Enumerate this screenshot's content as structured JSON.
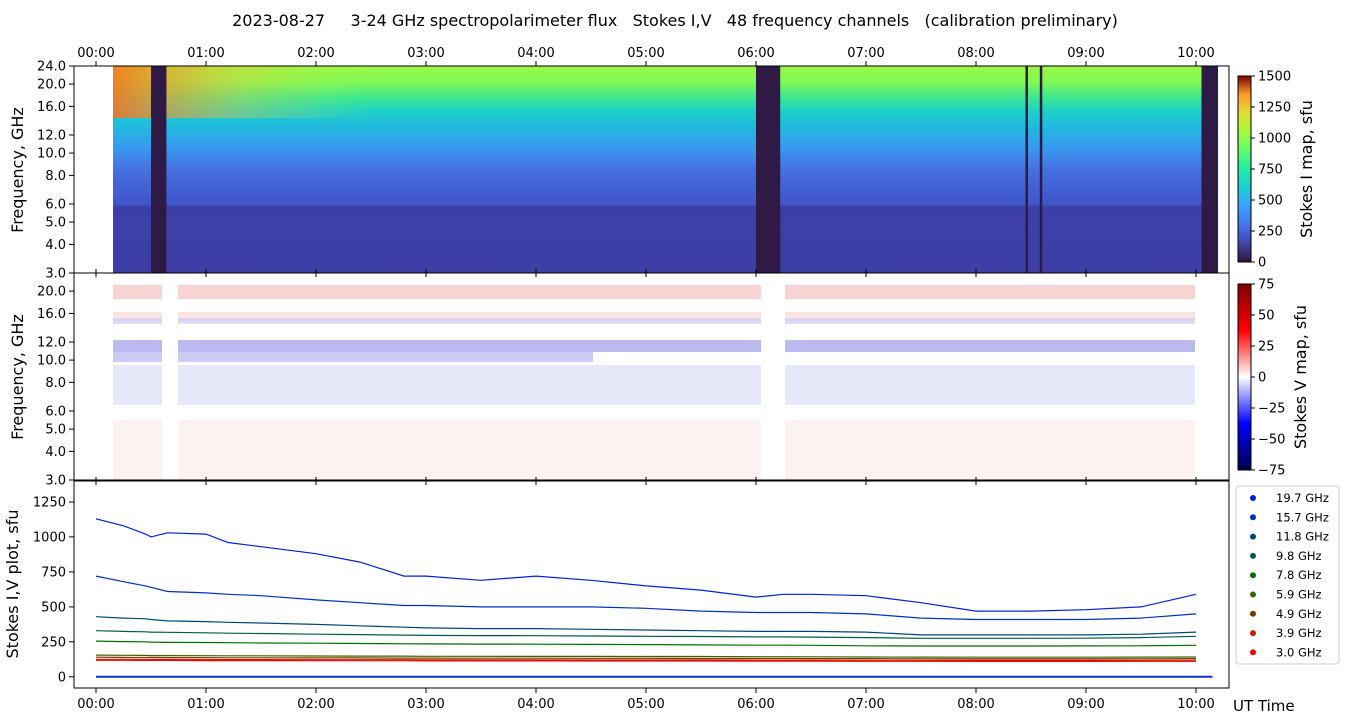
{
  "title": "2023-08-27     3-24 GHz spectropolarimeter flux   Stokes I,V   48 frequency channels   (calibration preliminary)",
  "time_ticks": [
    "00:00",
    "01:00",
    "02:00",
    "03:00",
    "04:00",
    "05:00",
    "06:00",
    "07:00",
    "08:00",
    "09:00",
    "10:00"
  ],
  "xlabel": "UT Time",
  "chart_data": [
    {
      "type": "heatmap",
      "name": "stokes-i-map",
      "ylabel": "Frequency, GHz",
      "y_ticks": [
        "3.0",
        "4.0",
        "5.0",
        "6.0",
        "8.0",
        "10.0",
        "12.0",
        "16.0",
        "20.0",
        "24.0"
      ],
      "y_tick_values": [
        3,
        4,
        5,
        6,
        8,
        10,
        12,
        16,
        20,
        24
      ],
      "colorbar_label": "Stokes I map, sfu",
      "colorbar_ticks": [
        0,
        250,
        500,
        750,
        1000,
        1250,
        1500
      ],
      "colorbar_range": [
        0,
        1500
      ],
      "colormap": "turbo",
      "data_gaps_hours": [
        [
          0.5,
          0.64
        ],
        [
          6.0,
          6.22
        ],
        [
          10.05,
          10.2
        ]
      ],
      "narrow_gaps_hours": [
        8.45,
        8.58
      ]
    },
    {
      "type": "heatmap",
      "name": "stokes-v-map",
      "ylabel": "Frequency, GHz",
      "y_ticks": [
        "3.0",
        "4.0",
        "5.0",
        "6.0",
        "8.0",
        "10.0",
        "12.0",
        "16.0",
        "20.0"
      ],
      "y_tick_values": [
        3,
        4,
        5,
        6,
        8,
        10,
        12,
        16,
        20
      ],
      "colorbar_label": "Stokes V map, sfu",
      "colorbar_ticks": [
        -75,
        -50,
        -25,
        0,
        25,
        50,
        75
      ],
      "colorbar_range": [
        -75,
        75
      ],
      "colormap": "seismic"
    },
    {
      "type": "line",
      "name": "stokes-iv-plot",
      "ylabel": "Stokes I,V plot, sfu",
      "y_ticks": [
        0,
        250,
        500,
        750,
        1000,
        1250
      ],
      "ylim": [
        -80,
        1400
      ],
      "xlim_hours": [
        -0.2,
        10.3
      ],
      "x_hours": [
        0.0,
        0.25,
        0.45,
        0.5,
        0.65,
        1.0,
        1.2,
        1.5,
        2.0,
        2.4,
        2.8,
        3.0,
        3.5,
        4.0,
        4.5,
        5.0,
        5.5,
        6.0,
        6.25,
        6.5,
        7.0,
        7.5,
        8.0,
        8.5,
        9.0,
        9.5,
        10.0
      ],
      "series": [
        {
          "name": "19.7 GHz",
          "color": "#0020d8",
          "values": [
            1130,
            1080,
            1020,
            1000,
            1030,
            1020,
            960,
            930,
            880,
            820,
            720,
            720,
            690,
            720,
            690,
            650,
            620,
            570,
            590,
            590,
            580,
            530,
            470,
            470,
            480,
            500,
            590
          ]
        },
        {
          "name": "15.7 GHz",
          "color": "#0030c0",
          "values": [
            720,
            680,
            650,
            640,
            610,
            600,
            590,
            580,
            550,
            530,
            510,
            510,
            500,
            500,
            500,
            490,
            470,
            460,
            460,
            460,
            450,
            420,
            410,
            410,
            410,
            420,
            450
          ]
        },
        {
          "name": "11.8 GHz",
          "color": "#004878",
          "values": [
            430,
            420,
            415,
            410,
            400,
            395,
            390,
            385,
            375,
            365,
            355,
            350,
            345,
            345,
            340,
            335,
            330,
            325,
            325,
            325,
            320,
            300,
            300,
            300,
            300,
            305,
            320
          ]
        },
        {
          "name": "9.8 GHz",
          "color": "#005c4a",
          "values": [
            330,
            325,
            322,
            320,
            318,
            315,
            312,
            310,
            305,
            302,
            298,
            296,
            295,
            294,
            292,
            290,
            288,
            285,
            285,
            284,
            280,
            275,
            275,
            275,
            276,
            280,
            290
          ]
        },
        {
          "name": "7.8 GHz",
          "color": "#007000",
          "values": [
            255,
            252,
            250,
            248,
            246,
            245,
            244,
            242,
            240,
            238,
            236,
            235,
            234,
            233,
            232,
            230,
            228,
            226,
            226,
            225,
            222,
            220,
            220,
            220,
            221,
            222,
            225
          ]
        },
        {
          "name": "5.9 GHz",
          "color": "#3c6400",
          "values": [
            155,
            154,
            153,
            152,
            152,
            151,
            150,
            150,
            149,
            148,
            148,
            147,
            147,
            146,
            146,
            145,
            145,
            144,
            144,
            143,
            142,
            141,
            140,
            140,
            140,
            141,
            142
          ]
        },
        {
          "name": "4.9 GHz",
          "color": "#783c00",
          "values": [
            140,
            139,
            138,
            138,
            137,
            137,
            136,
            136,
            135,
            135,
            134,
            134,
            133,
            133,
            132,
            132,
            131,
            131,
            131,
            130,
            130,
            129,
            128,
            128,
            128,
            129,
            130
          ]
        },
        {
          "name": "3.9 GHz",
          "color": "#c81e00",
          "values": [
            125,
            125,
            124,
            124,
            124,
            123,
            123,
            123,
            122,
            122,
            122,
            121,
            121,
            121,
            120,
            120,
            120,
            119,
            119,
            119,
            118,
            118,
            117,
            117,
            117,
            118,
            118
          ]
        },
        {
          "name": "3.0 GHz",
          "color": "#ff0000",
          "values": [
            118,
            118,
            117,
            117,
            117,
            116,
            116,
            116,
            115,
            115,
            115,
            114,
            114,
            114,
            113,
            113,
            113,
            112,
            112,
            112,
            111,
            111,
            110,
            110,
            110,
            111,
            111
          ]
        }
      ]
    }
  ]
}
